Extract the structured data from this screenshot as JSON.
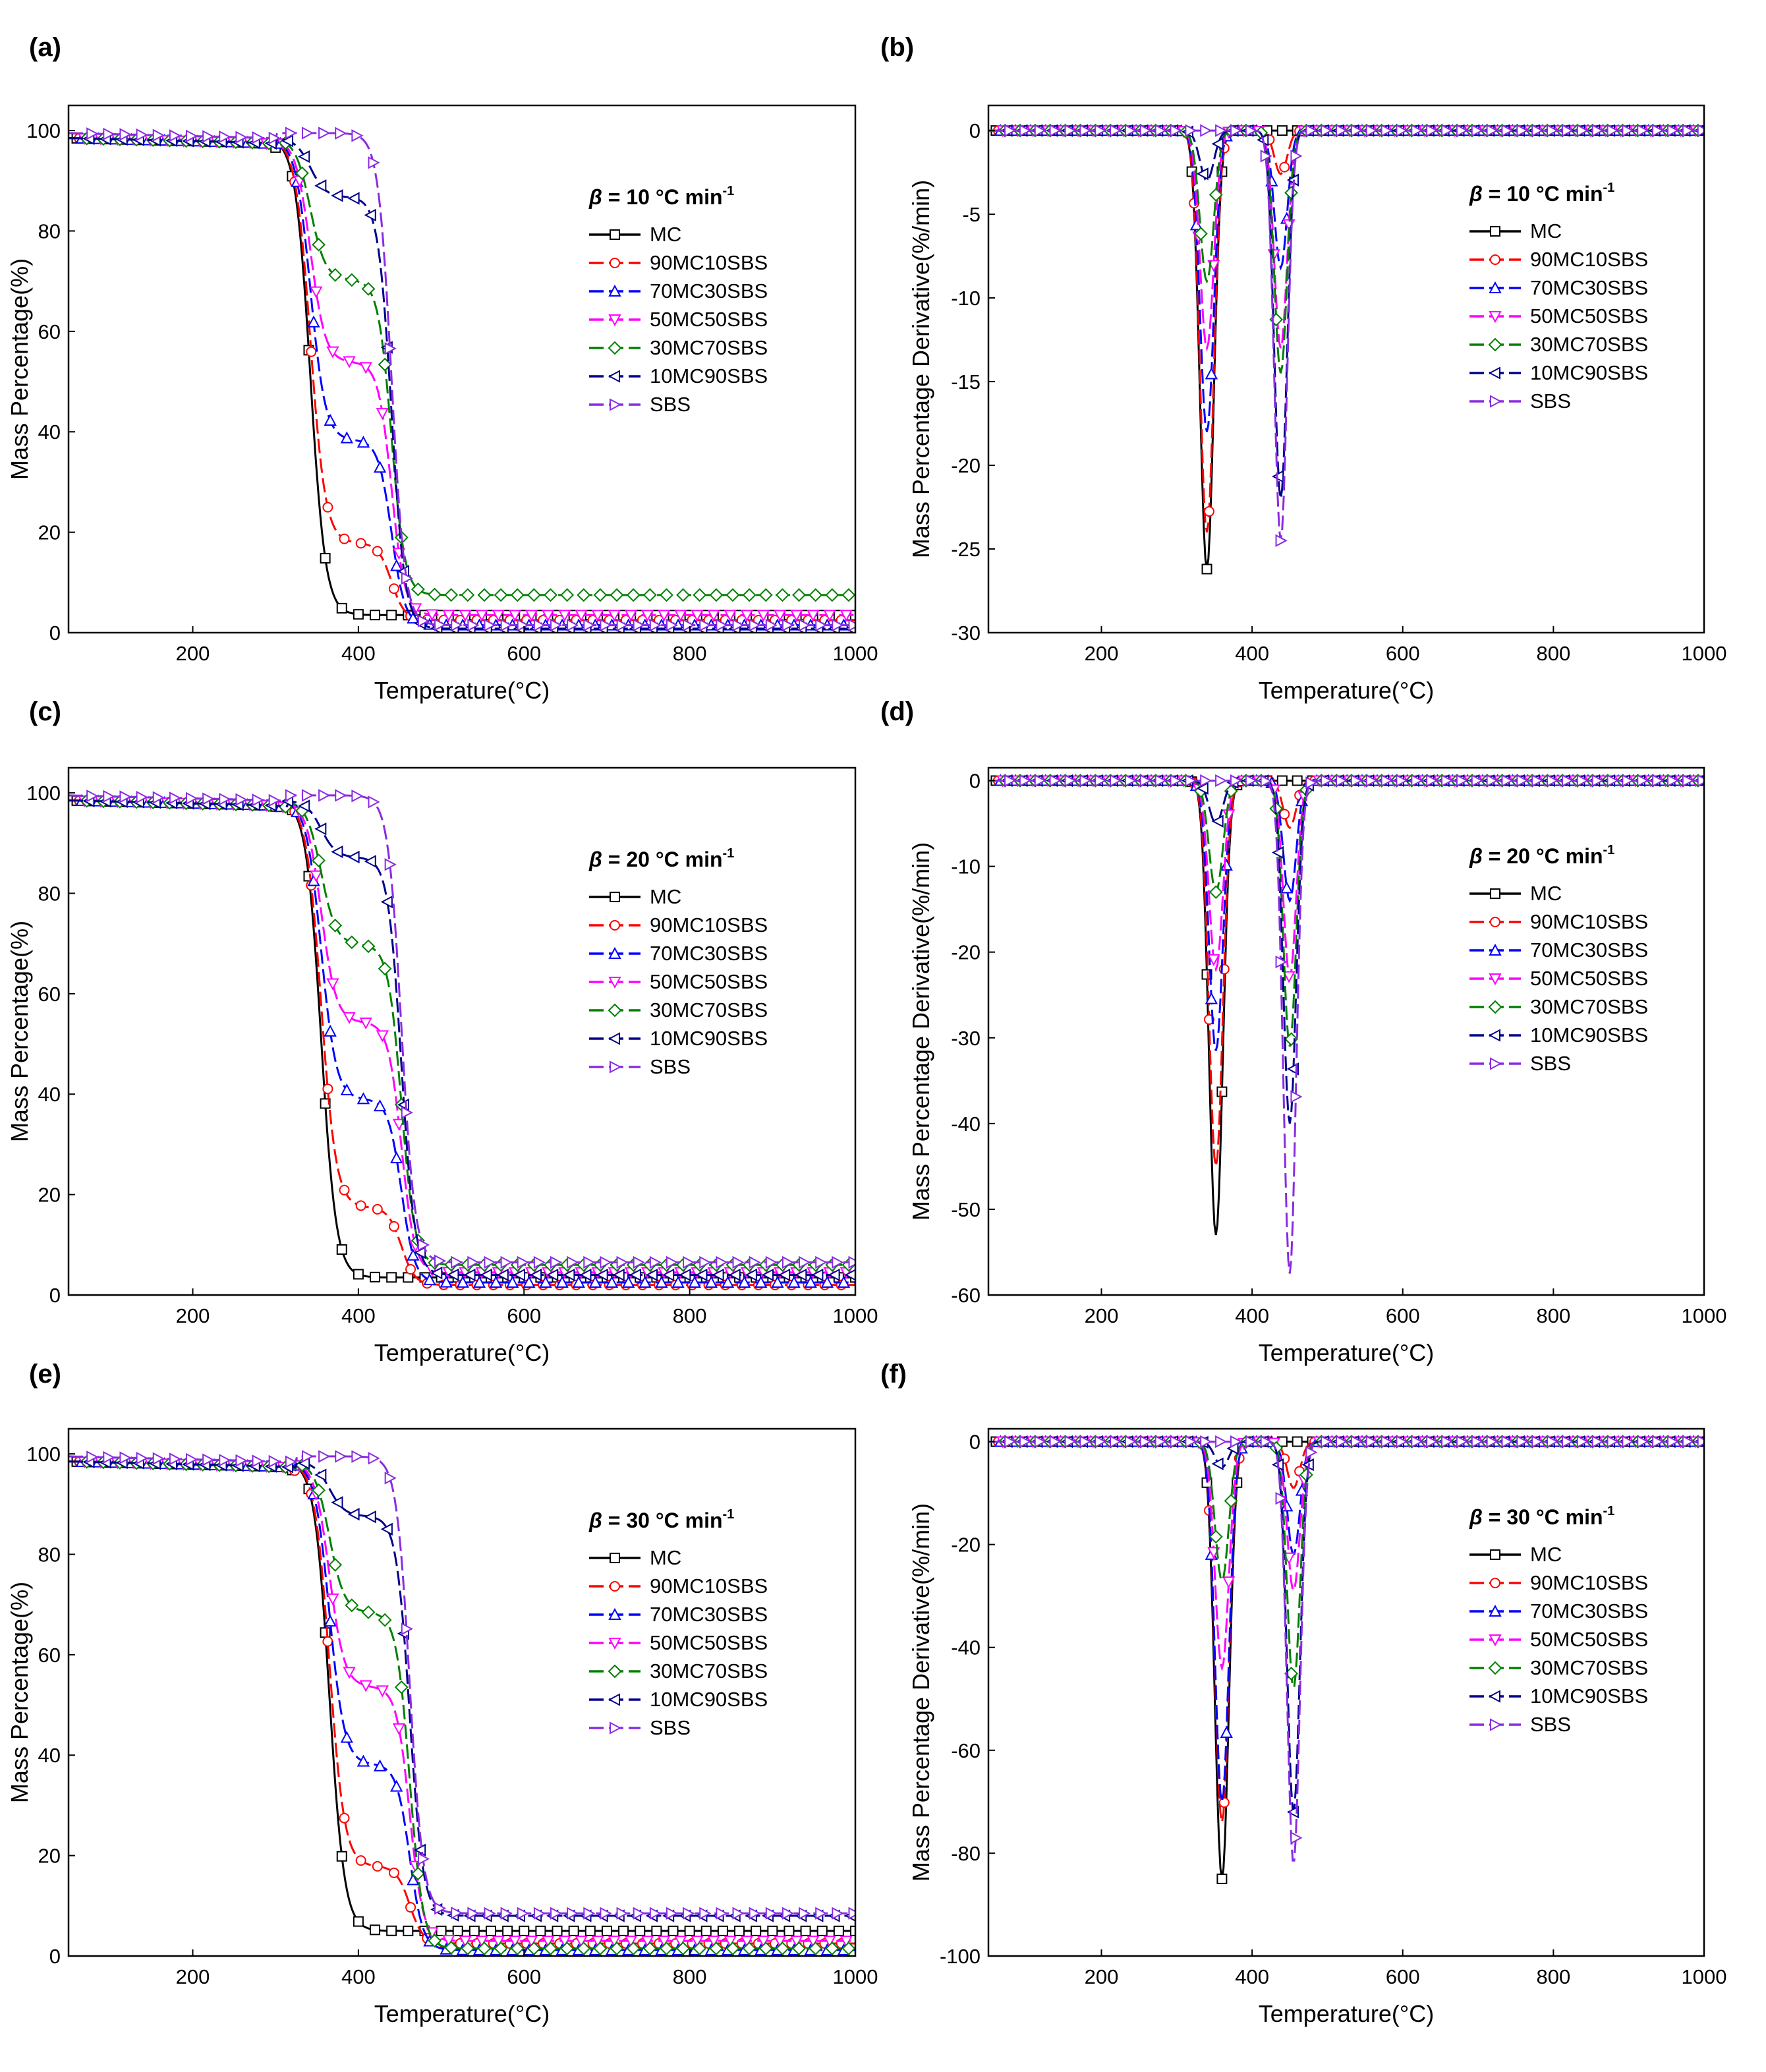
{
  "figure": {
    "colors": {
      "MC": "#000000",
      "90MC10SBS": "#ff0000",
      "70MC30SBS": "#0000ff",
      "50MC50SBS": "#ff00ff",
      "30MC70SBS": "#008000",
      "10MC90SBS": "#00008b",
      "SBS": "#8a2be2"
    }
  },
  "chart_data": [
    {
      "panel": "(a)",
      "type": "line",
      "xlabel": "Temperature(°C)",
      "ylabel": "Mass Percentage(%)",
      "xlim": [
        50,
        1000
      ],
      "ylim": [
        0,
        105
      ],
      "xticks": [
        200,
        400,
        600,
        800,
        1000
      ],
      "yticks": [
        0,
        20,
        40,
        60,
        80,
        100
      ],
      "legend_title_prefix": "β",
      "legend_title_rest": " = 10 °C min",
      "legend_title_sup": "-1",
      "legend": [
        "MC",
        "90MC10SBS",
        "70MC30SBS",
        "50MC50SBS",
        "30MC70SBS",
        "10MC90SBS",
        "SBS"
      ],
      "kind": "tg",
      "params": {
        "T1": 342,
        "T2": 440,
        "start": 98.5,
        "residues": [
          3.5,
          2.5,
          1.5,
          3.5,
          7.5,
          0.8,
          1.5
        ]
      }
    },
    {
      "panel": "(b)",
      "type": "line",
      "xlabel": "Temperature(°C)",
      "ylabel": "Mass Percentage Derivative(%/min)",
      "xlim": [
        50,
        1000
      ],
      "ylim": [
        -30,
        1.5
      ],
      "xticks": [
        200,
        400,
        600,
        800,
        1000
      ],
      "yticks": [
        -30,
        -25,
        -20,
        -15,
        -10,
        -5,
        0
      ],
      "legend_title_prefix": "β",
      "legend_title_rest": " = 10 °C min",
      "legend_title_sup": "-1",
      "legend": [
        "MC",
        "90MC10SBS",
        "70MC30SBS",
        "50MC50SBS",
        "30MC70SBS",
        "10MC90SBS",
        "SBS"
      ],
      "kind": "dtg",
      "params": {
        "T1": 340,
        "T2": 438,
        "peak1": [
          26.2,
          24,
          18,
          13,
          9,
          3,
          0
        ],
        "peak2": [
          0,
          2.6,
          8.2,
          13,
          14.5,
          22,
          24.5
        ]
      }
    },
    {
      "panel": "(c)",
      "type": "line",
      "xlabel": "Temperature(°C)",
      "ylabel": "Mass Percentage(%)",
      "xlim": [
        50,
        1000
      ],
      "ylim": [
        0,
        105
      ],
      "xticks": [
        200,
        400,
        600,
        800,
        1000
      ],
      "yticks": [
        0,
        20,
        40,
        60,
        80,
        100
      ],
      "legend_title_prefix": "β",
      "legend_title_rest": " = 20 °C min",
      "legend_title_sup": "-1",
      "legend": [
        "MC",
        "90MC10SBS",
        "70MC30SBS",
        "50MC50SBS",
        "30MC70SBS",
        "10MC90SBS",
        "SBS"
      ],
      "kind": "tg",
      "params": {
        "T1": 355,
        "T2": 452,
        "start": 98.5,
        "residues": [
          3.5,
          2,
          2.5,
          4.5,
          6,
          4,
          6.5
        ]
      }
    },
    {
      "panel": "(d)",
      "type": "line",
      "xlabel": "Temperature(°C)",
      "ylabel": "Mass Percentage Derivative(%/min)",
      "xlim": [
        50,
        1000
      ],
      "ylim": [
        -60,
        1.5
      ],
      "xticks": [
        200,
        400,
        600,
        800,
        1000
      ],
      "yticks": [
        -60,
        -50,
        -40,
        -30,
        -20,
        -10,
        0
      ],
      "legend_title_prefix": "β",
      "legend_title_rest": " = 20 °C min",
      "legend_title_sup": "-1",
      "legend": [
        "MC",
        "90MC10SBS",
        "70MC30SBS",
        "50MC50SBS",
        "30MC70SBS",
        "10MC90SBS",
        "SBS"
      ],
      "kind": "dtg",
      "params": {
        "T1": 352,
        "T2": 450,
        "peak1": [
          53,
          45,
          31.5,
          22,
          13,
          5,
          0
        ],
        "peak2": [
          0,
          5.5,
          14,
          23,
          31,
          40,
          57.5
        ]
      }
    },
    {
      "panel": "(e)",
      "type": "line",
      "xlabel": "Temperature(°C)",
      "ylabel": "Mass Percentage(%)",
      "xlim": [
        50,
        1000
      ],
      "ylim": [
        0,
        105
      ],
      "xticks": [
        200,
        400,
        600,
        800,
        1000
      ],
      "yticks": [
        0,
        20,
        40,
        60,
        80,
        100
      ],
      "legend_title_prefix": "β",
      "legend_title_rest": " = 30 °C min",
      "legend_title_sup": "-1",
      "legend": [
        "MC",
        "90MC10SBS",
        "70MC30SBS",
        "50MC50SBS",
        "30MC70SBS",
        "10MC90SBS",
        "SBS"
      ],
      "kind": "tg",
      "params": {
        "T1": 365,
        "T2": 462,
        "start": 98.5,
        "residues": [
          5,
          2.5,
          1.2,
          3,
          1.5,
          8,
          8.5
        ]
      }
    },
    {
      "panel": "(f)",
      "type": "line",
      "xlabel": "Temperature(°C)",
      "ylabel": "Mass Percentage Derivative(%/min)",
      "xlim": [
        50,
        1000
      ],
      "ylim": [
        -100,
        2.5
      ],
      "xticks": [
        200,
        400,
        600,
        800,
        1000
      ],
      "yticks": [
        -100,
        -80,
        -60,
        -40,
        -20,
        0
      ],
      "legend_title_prefix": "β",
      "legend_title_rest": " = 30 °C min",
      "legend_title_sup": "-1",
      "legend": [
        "MC",
        "90MC10SBS",
        "70MC30SBS",
        "50MC50SBS",
        "30MC70SBS",
        "10MC90SBS",
        "SBS"
      ],
      "kind": "dtg",
      "params": {
        "T1": 360,
        "T2": 455,
        "peak1": [
          85,
          74,
          70,
          44,
          27,
          5,
          0
        ],
        "peak2": [
          0,
          9,
          22,
          29,
          48,
          72,
          82
        ]
      }
    }
  ]
}
